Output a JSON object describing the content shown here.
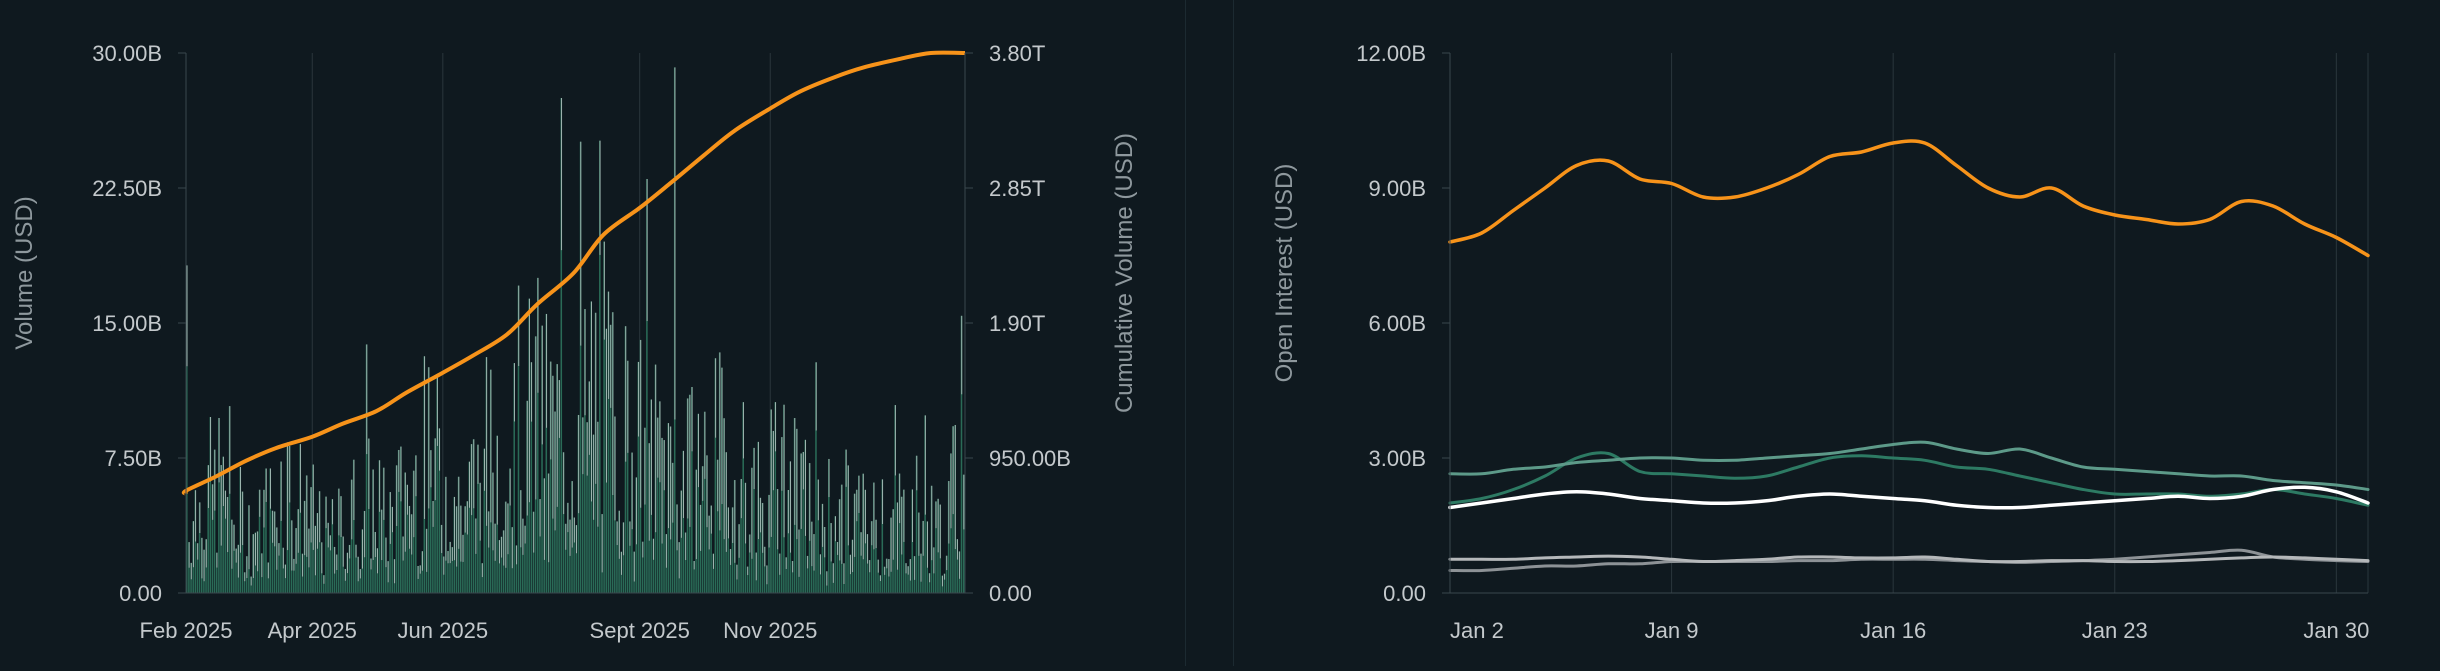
{
  "theme": {
    "background": "#0f191f",
    "axis_text": "#c4c9cc",
    "title_text": "#8e989d",
    "grid": "#2a363c",
    "volume_color": "#2a6b57",
    "volume_highlight": "#c9d0d0",
    "cumulative_color": "#f7931a"
  },
  "chart_data": [
    {
      "type": "bar",
      "title": "",
      "ylabel": "Volume (USD)",
      "y2label": "Cumulative Volume (USD)",
      "xlabels": [
        "Feb 2025",
        "Apr 2025",
        "Jun 2025",
        "Sept 2025",
        "Nov 2025"
      ],
      "yticks": [
        "0.00",
        "7.50B",
        "15.00B",
        "22.50B",
        "30.00B"
      ],
      "y2ticks": [
        "0.00",
        "950.00B",
        "1.90T",
        "2.85T",
        "3.80T"
      ],
      "ylim": [
        0,
        30000000000
      ],
      "y2lim": [
        0,
        3800000000000
      ],
      "x_range": [
        "2025-02-01",
        "2026-01-31"
      ],
      "grid": true,
      "series": [
        {
          "kind": "bar",
          "color": "#2a6b57",
          "values_billions_weekly_avg": [
            4.5,
            5.5,
            6.0,
            4.0,
            3.5,
            4.5,
            6.0,
            5.0,
            4.0,
            3.0,
            3.5,
            4.5,
            5.0,
            4.0,
            5.0,
            6.0,
            7.0,
            6.0,
            5.0,
            6.0,
            7.5,
            8.0,
            9.5,
            10.0,
            9.0,
            8.0,
            9.5,
            11.0,
            10.0,
            9.0,
            8.0,
            7.5,
            7.0,
            6.5,
            7.0,
            7.5,
            6.0,
            5.0,
            5.5,
            6.0,
            5.5,
            5.0,
            4.5,
            4.0,
            4.5,
            4.0,
            3.5,
            4.0,
            4.5,
            4.0,
            3.5,
            5.5
          ]
        },
        {
          "kind": "line",
          "axis": "right",
          "color": "#f7931a",
          "points_trillions": [
            [
              "2025-02-01",
              0.72
            ],
            [
              "2025-02-15",
              0.82
            ],
            [
              "2025-03-01",
              0.93
            ],
            [
              "2025-03-15",
              1.02
            ],
            [
              "2025-04-01",
              1.1
            ],
            [
              "2025-04-15",
              1.19
            ],
            [
              "2025-05-01",
              1.28
            ],
            [
              "2025-05-15",
              1.41
            ],
            [
              "2025-06-01",
              1.55
            ],
            [
              "2025-06-15",
              1.67
            ],
            [
              "2025-07-01",
              1.82
            ],
            [
              "2025-07-15",
              2.03
            ],
            [
              "2025-08-01",
              2.25
            ],
            [
              "2025-08-15",
              2.52
            ],
            [
              "2025-09-01",
              2.71
            ],
            [
              "2025-09-15",
              2.88
            ],
            [
              "2025-10-01",
              3.08
            ],
            [
              "2025-10-15",
              3.25
            ],
            [
              "2025-11-01",
              3.41
            ],
            [
              "2025-11-15",
              3.53
            ],
            [
              "2025-12-01",
              3.63
            ],
            [
              "2025-12-15",
              3.7
            ],
            [
              "2026-01-01",
              3.76
            ],
            [
              "2026-01-15",
              3.8
            ]
          ]
        }
      ]
    },
    {
      "type": "line",
      "title": "",
      "ylabel": "Open Interest (USD)",
      "xlabels": [
        "Jan 2",
        "Jan 9",
        "Jan 16",
        "Jan 23",
        "Jan 30"
      ],
      "yticks": [
        "0.00",
        "3.00B",
        "6.00B",
        "9.00B",
        "12.00B"
      ],
      "ylim": [
        0,
        12
      ],
      "x_range_days": [
        2,
        31
      ],
      "grid": true,
      "series": [
        {
          "color": "#f7931a",
          "width": 3.5,
          "x": [
            2,
            3,
            4,
            5,
            6,
            7,
            8,
            9,
            10,
            11,
            12,
            13,
            14,
            15,
            16,
            17,
            18,
            19,
            20,
            21,
            22,
            23,
            24,
            25,
            26,
            27,
            28,
            29,
            30,
            31
          ],
          "values": [
            7.8,
            8.0,
            8.5,
            9.0,
            9.5,
            9.6,
            9.2,
            9.1,
            8.8,
            8.8,
            9.0,
            9.3,
            9.7,
            9.8,
            10.0,
            10.0,
            9.5,
            9.0,
            8.8,
            9.0,
            8.6,
            8.4,
            8.3,
            8.2,
            8.3,
            8.7,
            8.6,
            8.2,
            7.9,
            7.5
          ]
        },
        {
          "color": "#5d9a89",
          "width": 3,
          "x": [
            2,
            3,
            4,
            5,
            6,
            7,
            8,
            9,
            10,
            11,
            12,
            13,
            14,
            15,
            16,
            17,
            18,
            19,
            20,
            21,
            22,
            23,
            24,
            25,
            26,
            27,
            28,
            29,
            30,
            31
          ],
          "values": [
            2.65,
            2.65,
            2.75,
            2.8,
            2.9,
            2.95,
            3.0,
            3.0,
            2.95,
            2.95,
            3.0,
            3.05,
            3.1,
            3.2,
            3.3,
            3.35,
            3.2,
            3.1,
            3.2,
            3.0,
            2.8,
            2.75,
            2.7,
            2.65,
            2.6,
            2.6,
            2.5,
            2.45,
            2.4,
            2.3
          ]
        },
        {
          "color": "#2d7a63",
          "width": 3,
          "x": [
            2,
            3,
            4,
            5,
            6,
            7,
            8,
            9,
            10,
            11,
            12,
            13,
            14,
            15,
            16,
            17,
            18,
            19,
            20,
            21,
            22,
            23,
            24,
            25,
            26,
            27,
            28,
            29,
            30,
            31
          ],
          "values": [
            2.0,
            2.1,
            2.3,
            2.6,
            3.0,
            3.1,
            2.7,
            2.65,
            2.6,
            2.55,
            2.6,
            2.8,
            3.0,
            3.05,
            3.0,
            2.95,
            2.8,
            2.75,
            2.6,
            2.45,
            2.3,
            2.2,
            2.2,
            2.2,
            2.15,
            2.2,
            2.3,
            2.2,
            2.1,
            1.95
          ]
        },
        {
          "color": "#ffffff",
          "width": 3.5,
          "x": [
            2,
            3,
            4,
            5,
            6,
            7,
            8,
            9,
            10,
            11,
            12,
            13,
            14,
            15,
            16,
            17,
            18,
            19,
            20,
            21,
            22,
            23,
            24,
            25,
            26,
            27,
            28,
            29,
            30,
            31
          ],
          "values": [
            1.9,
            2.0,
            2.1,
            2.2,
            2.25,
            2.2,
            2.1,
            2.05,
            2.0,
            2.0,
            2.05,
            2.15,
            2.2,
            2.15,
            2.1,
            2.05,
            1.95,
            1.9,
            1.9,
            1.95,
            2.0,
            2.05,
            2.1,
            2.15,
            2.1,
            2.15,
            2.3,
            2.35,
            2.25,
            2.0
          ]
        },
        {
          "color": "#b5b8ba",
          "width": 3,
          "x": [
            2,
            3,
            4,
            5,
            6,
            7,
            8,
            9,
            10,
            11,
            12,
            13,
            14,
            15,
            16,
            17,
            18,
            19,
            20,
            21,
            22,
            23,
            24,
            25,
            26,
            27,
            28,
            29,
            30,
            31
          ],
          "values": [
            0.75,
            0.75,
            0.75,
            0.78,
            0.8,
            0.82,
            0.8,
            0.75,
            0.7,
            0.72,
            0.75,
            0.8,
            0.8,
            0.78,
            0.78,
            0.8,
            0.75,
            0.7,
            0.7,
            0.72,
            0.72,
            0.7,
            0.7,
            0.72,
            0.75,
            0.78,
            0.8,
            0.78,
            0.75,
            0.72
          ]
        },
        {
          "color": "#8d9296",
          "width": 3,
          "x": [
            2,
            3,
            4,
            5,
            6,
            7,
            8,
            9,
            10,
            11,
            12,
            13,
            14,
            15,
            16,
            17,
            18,
            19,
            20,
            21,
            22,
            23,
            24,
            25,
            26,
            27,
            28,
            29,
            30,
            31
          ],
          "values": [
            0.5,
            0.5,
            0.55,
            0.6,
            0.6,
            0.65,
            0.65,
            0.7,
            0.7,
            0.7,
            0.7,
            0.72,
            0.72,
            0.75,
            0.75,
            0.75,
            0.72,
            0.7,
            0.68,
            0.7,
            0.72,
            0.75,
            0.8,
            0.85,
            0.9,
            0.95,
            0.8,
            0.75,
            0.72,
            0.7
          ]
        }
      ]
    }
  ]
}
